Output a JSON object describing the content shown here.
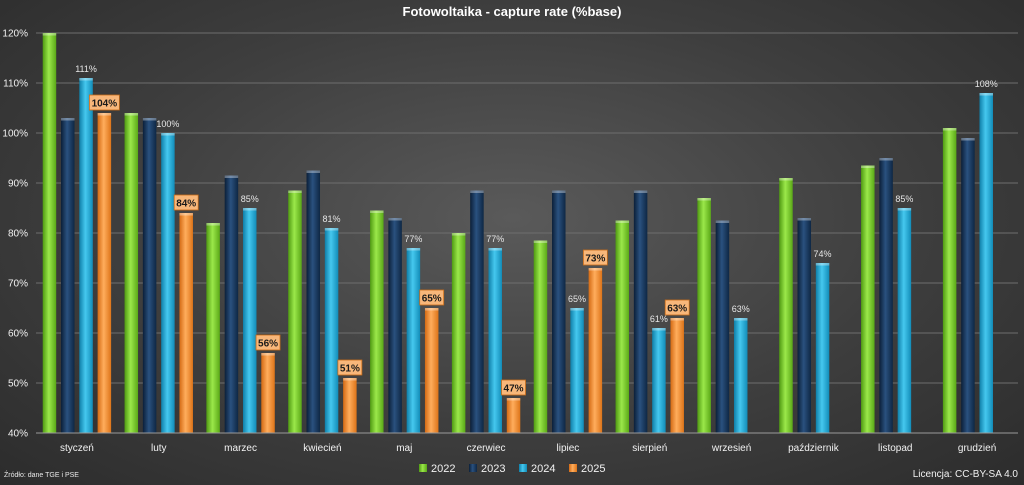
{
  "chart_data": {
    "type": "bar",
    "title": "Fotowoltaika - capture rate (%base)",
    "xlabel": "",
    "ylabel": "",
    "ylim": [
      40,
      120
    ],
    "yticks": [
      40,
      50,
      60,
      70,
      80,
      90,
      100,
      110,
      120
    ],
    "ytick_suffix": "%",
    "grid": true,
    "legend_position": "bottom",
    "categories": [
      "styczeń",
      "luty",
      "marzec",
      "kwiecień",
      "maj",
      "czerwiec",
      "lipiec",
      "sierpień",
      "wrzesień",
      "październik",
      "listopad",
      "grudzień"
    ],
    "series": [
      {
        "name": "2022",
        "color": "#7ed321",
        "values": [
          120,
          104,
          82,
          88.5,
          84.5,
          80,
          78.5,
          82.5,
          87,
          91,
          93.5,
          101
        ],
        "labels": [
          "",
          "",
          "",
          "",
          "",
          "",
          "",
          "",
          "",
          "",
          "",
          ""
        ]
      },
      {
        "name": "2023",
        "color": "#17375e",
        "values": [
          103,
          103,
          91.5,
          92.5,
          83,
          88.5,
          88.5,
          88.5,
          82.5,
          83,
          95,
          99
        ],
        "labels": [
          "",
          "",
          "",
          "",
          "",
          "",
          "",
          "",
          "",
          "",
          "",
          ""
        ]
      },
      {
        "name": "2024",
        "color": "#1ea8d6",
        "values": [
          111,
          100,
          85,
          81,
          77,
          77,
          65,
          61,
          63,
          74,
          85,
          108
        ],
        "labels": [
          "111%",
          "100%",
          "85%",
          "81%",
          "77%",
          "77%",
          "65%",
          "61%",
          "63%",
          "74%",
          "85%",
          "108%"
        ]
      },
      {
        "name": "2025",
        "color": "#f58a2e",
        "values": [
          104,
          84,
          56,
          51,
          65,
          47,
          73,
          63,
          null,
          null,
          null,
          null
        ],
        "labels": [
          "104%",
          "84%",
          "56%",
          "51%",
          "65%",
          "47%",
          "73%",
          "63%",
          "",
          "",
          "",
          ""
        ]
      }
    ]
  },
  "footer": {
    "source": "Źródło: dane TGE i PSE",
    "license": "Licencja: CC-BY-SA 4.0"
  }
}
